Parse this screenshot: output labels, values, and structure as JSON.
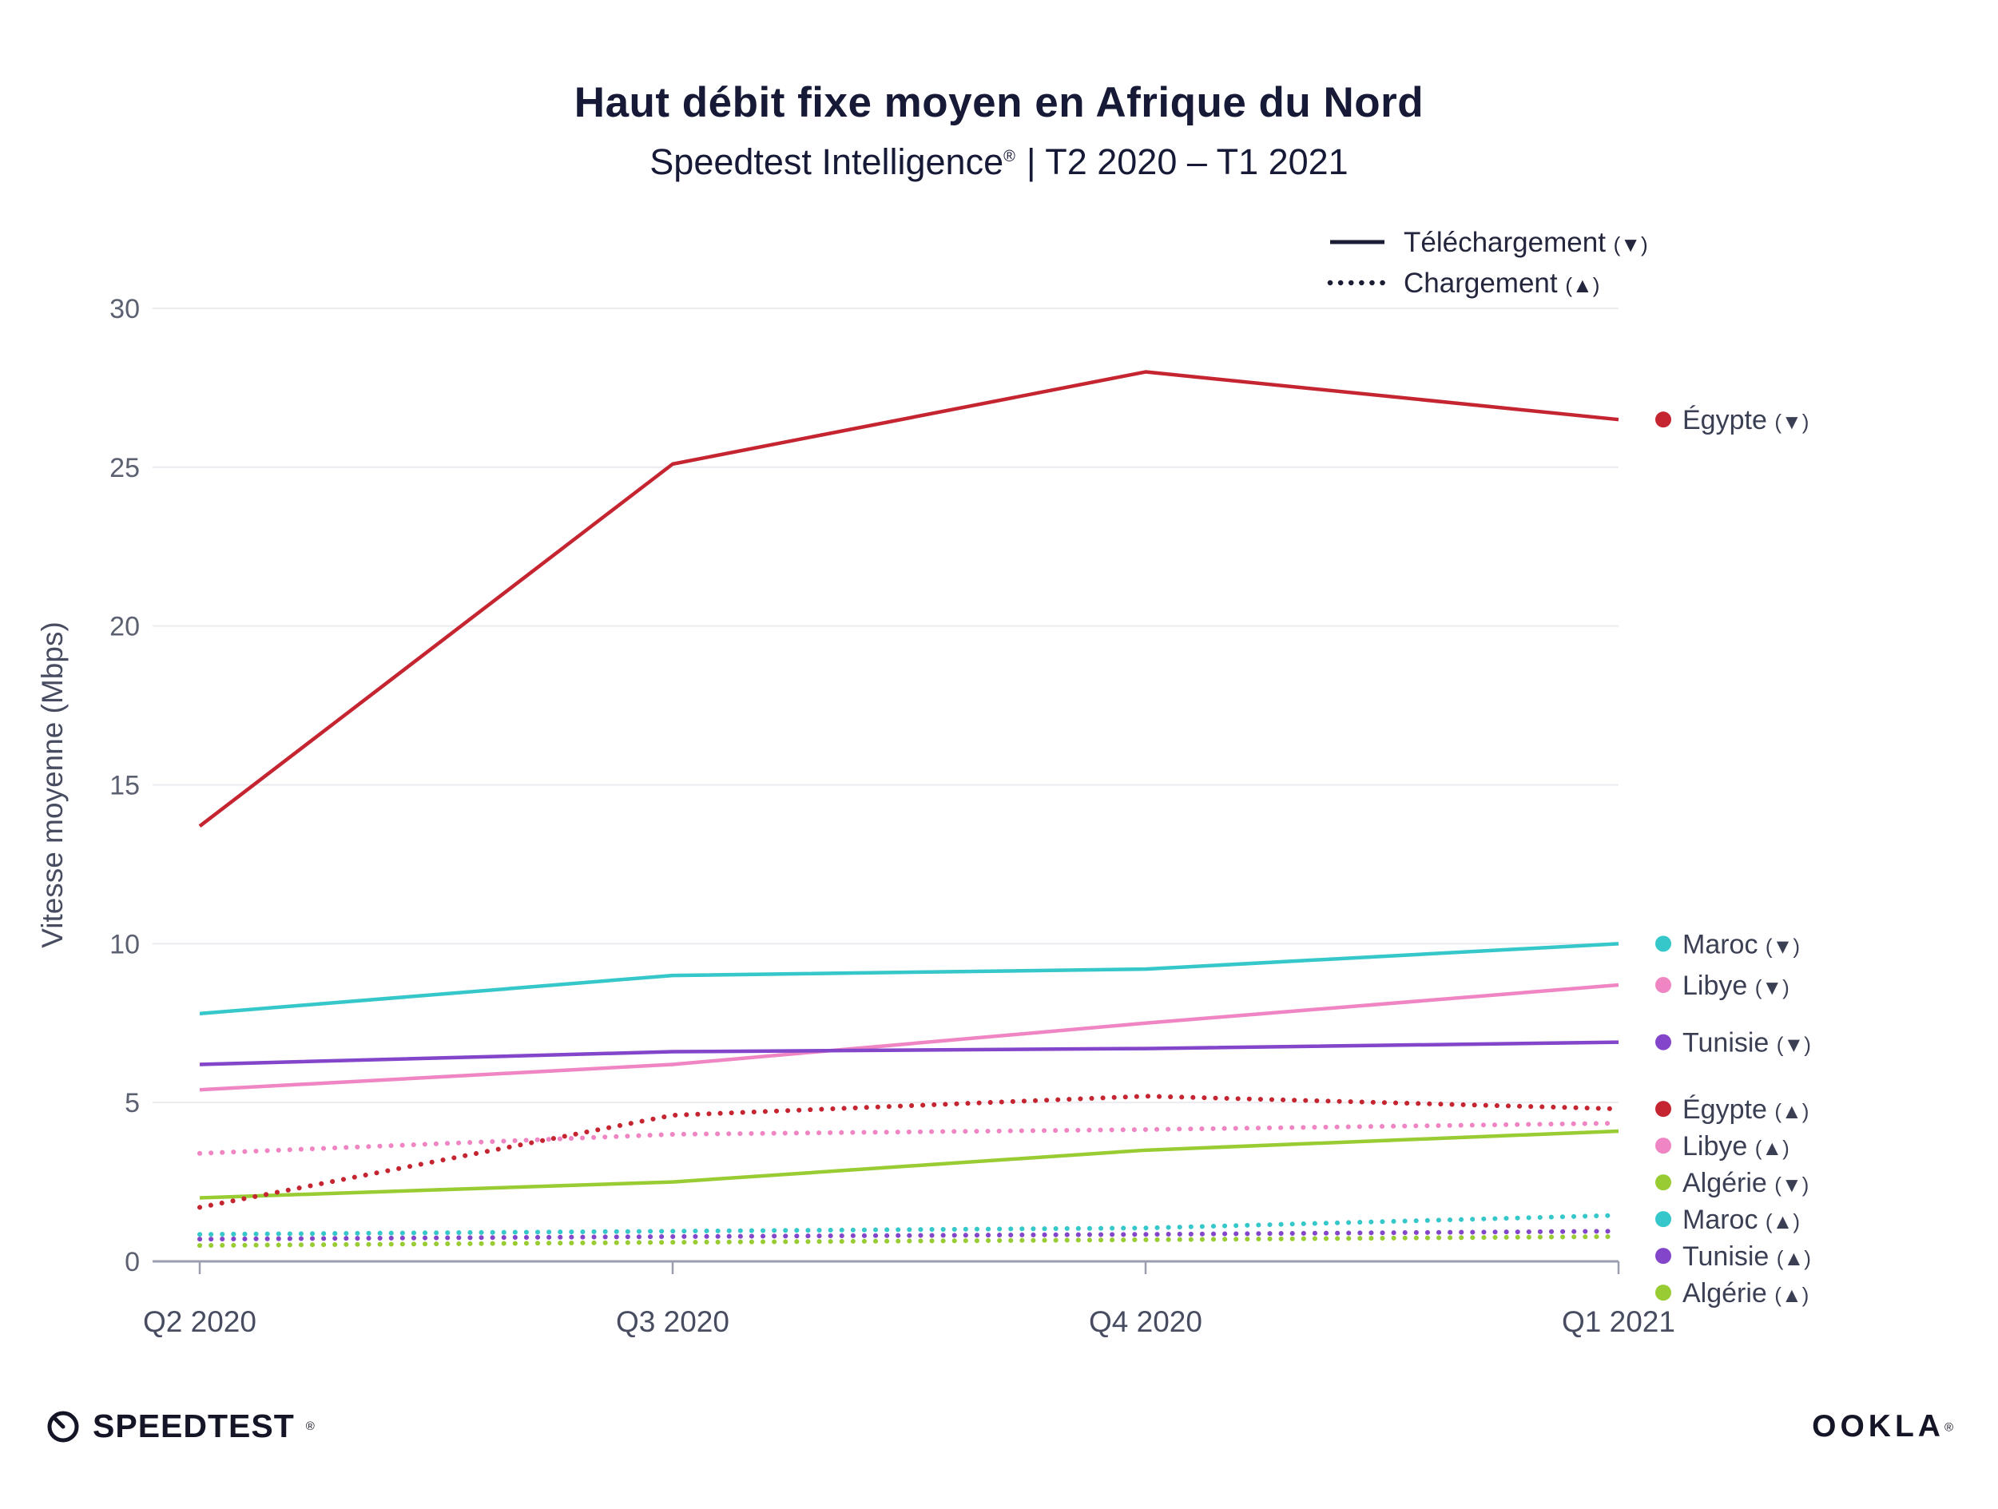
{
  "title": "Haut débit fixe moyen en Afrique du Nord",
  "subtitle": {
    "brand": "Speedtest Intelligence",
    "registered": "®",
    "period": "| T2 2020 – T1 2021"
  },
  "footer": {
    "speedtest": {
      "wordmark": "SPEEDTEST",
      "registered": "®"
    },
    "ookla": {
      "wordmark": "OOKLA",
      "registered": "®"
    }
  },
  "colors": {
    "egypte": "#c52531",
    "maroc": "#35c7c9",
    "libye": "#ef85c3",
    "tunisie": "#8345c9",
    "algerie": "#99cc33",
    "text_dark": "#171a37",
    "grid": "#ebebf0",
    "axis": "#9b9eae",
    "legend_line": "#1a1d33"
  },
  "chart_data": {
    "type": "line",
    "title": "Haut débit fixe moyen en Afrique du Nord",
    "subtitle": "Speedtest Intelligence® | T2 2020 – T1 2021",
    "x": [
      "Q2 2020",
      "Q3 2020",
      "Q4 2020",
      "Q1 2021"
    ],
    "xlabel": "",
    "ylabel": "Vitesse moyenne (Mbps)",
    "ylim": [
      0,
      30
    ],
    "yticks": [
      0,
      5,
      10,
      15,
      20,
      25,
      30
    ],
    "grid": "horizontal",
    "legend_position": "top-right",
    "legend": [
      {
        "label": "Téléchargement",
        "arrow": "(▼)",
        "style": "solid"
      },
      {
        "label": "Chargement",
        "arrow": "(▲)",
        "style": "dotted"
      }
    ],
    "series": [
      {
        "name": "Égypte",
        "direction": "download",
        "arrow": "(▼)",
        "style": "solid",
        "color": "#c52531",
        "values": [
          13.7,
          25.1,
          28.0,
          26.5
        ]
      },
      {
        "name": "Maroc",
        "direction": "download",
        "arrow": "(▼)",
        "style": "solid",
        "color": "#35c7c9",
        "values": [
          7.8,
          9.0,
          9.2,
          10.0
        ]
      },
      {
        "name": "Libye",
        "direction": "download",
        "arrow": "(▼)",
        "style": "solid",
        "color": "#ef85c3",
        "values": [
          5.4,
          6.2,
          7.5,
          8.7
        ]
      },
      {
        "name": "Tunisie",
        "direction": "download",
        "arrow": "(▼)",
        "style": "solid",
        "color": "#8345c9",
        "values": [
          6.2,
          6.6,
          6.7,
          6.9
        ]
      },
      {
        "name": "Algérie",
        "direction": "download",
        "arrow": "(▼)",
        "style": "solid",
        "color": "#99cc33",
        "values": [
          2.0,
          2.5,
          3.5,
          4.1
        ]
      },
      {
        "name": "Égypte",
        "direction": "upload",
        "arrow": "(▲)",
        "style": "dotted",
        "color": "#c52531",
        "values": [
          1.7,
          4.6,
          5.2,
          4.8
        ]
      },
      {
        "name": "Libye",
        "direction": "upload",
        "arrow": "(▲)",
        "style": "dotted",
        "color": "#ef85c3",
        "values": [
          3.4,
          4.0,
          4.15,
          4.35
        ]
      },
      {
        "name": "Maroc",
        "direction": "upload",
        "arrow": "(▲)",
        "style": "dotted",
        "color": "#35c7c9",
        "values": [
          0.85,
          0.95,
          1.05,
          1.45
        ]
      },
      {
        "name": "Tunisie",
        "direction": "upload",
        "arrow": "(▲)",
        "style": "dotted",
        "color": "#8345c9",
        "values": [
          0.7,
          0.78,
          0.85,
          0.95
        ]
      },
      {
        "name": "Algérie",
        "direction": "upload",
        "arrow": "(▲)",
        "style": "dotted",
        "color": "#99cc33",
        "values": [
          0.5,
          0.6,
          0.68,
          0.78
        ]
      }
    ]
  }
}
